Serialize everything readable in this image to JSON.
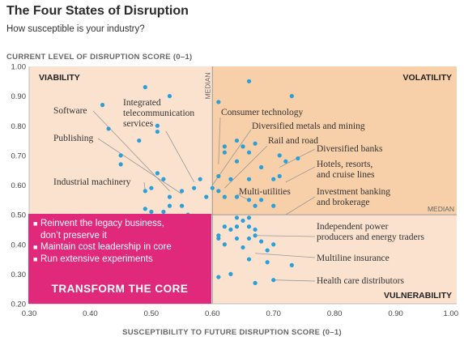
{
  "title": "The Four States of Disruption",
  "subtitle": "How susceptible is your industry?",
  "callout": {
    "bullets": [
      "Reinvent the legacy business,\ndon’t preserve it",
      "Maintain cost leadership in core",
      "Run extensive experiments"
    ],
    "heading": "TRANSFORM THE CORE",
    "color": "#e0297a"
  },
  "chart_data": {
    "type": "scatter",
    "title": "The Four States of Disruption",
    "subtitle": "How susceptible is your industry?",
    "xlabel": "SUSCEPTIBILITY TO FUTURE DISRUPTION SCORE (0–1)",
    "ylabel": "CURRENT LEVEL OF DISRUPTION SCORE (0–1)",
    "xlim": [
      0.3,
      1.0
    ],
    "ylim": [
      0.2,
      1.0
    ],
    "x_ticks": [
      "0.30",
      "0.40",
      "0.50",
      "0.60",
      "0.70",
      "0.80",
      "0.90",
      "1.00"
    ],
    "y_ticks": [
      "0.20",
      "0.30",
      "0.40",
      "0.50",
      "0.60",
      "0.70",
      "0.80",
      "0.90",
      "1.00"
    ],
    "grid": false,
    "median": {
      "x": 0.6,
      "y": 0.5,
      "label": "MEDIAN"
    },
    "point_color": "#2a9fd8",
    "quadrants": [
      {
        "name": "VIABILITY",
        "x_range": [
          0.3,
          0.6
        ],
        "y_range": [
          0.5,
          1.0
        ],
        "color": "#fbe2cf"
      },
      {
        "name": "VOLATILITY",
        "x_range": [
          0.6,
          1.0
        ],
        "y_range": [
          0.5,
          1.0
        ],
        "color": "#f7cfa9"
      },
      {
        "name": "VULNERABILITY",
        "x_range": [
          0.6,
          1.0
        ],
        "y_range": [
          0.2,
          0.5
        ],
        "color": "#fbe2cf"
      }
    ],
    "annotations": [
      {
        "text": "Software",
        "point": [
          0.53,
          0.58
        ]
      },
      {
        "text": "Integrated\ntelecommunication\nservices",
        "point": [
          0.57,
          0.61
        ]
      },
      {
        "text": "Publishing",
        "point": [
          0.55,
          0.57
        ]
      },
      {
        "text": "Industrial machinery",
        "point": [
          0.49,
          0.58
        ]
      },
      {
        "text": "Consumer technology",
        "point": [
          0.61,
          0.67
        ]
      },
      {
        "text": "Diversified metals and mining",
        "point": [
          0.6,
          0.6
        ]
      },
      {
        "text": "Rail and road",
        "point": [
          0.62,
          0.59
        ]
      },
      {
        "text": "Diversified banks",
        "point": [
          0.71,
          0.66
        ]
      },
      {
        "text": "Hotels, resorts,\nand cruise lines",
        "point": [
          0.72,
          0.61
        ]
      },
      {
        "text": "Multi-utilities",
        "point": [
          0.66,
          0.55
        ]
      },
      {
        "text": "Investment banking\nand brokerage",
        "point": [
          0.72,
          0.5
        ]
      },
      {
        "text": "Independent power\nproducers and energy traders",
        "point": [
          0.67,
          0.43
        ]
      },
      {
        "text": "Multiline insurance",
        "point": [
          0.67,
          0.37
        ]
      },
      {
        "text": "Health care distributors",
        "point": [
          0.7,
          0.28
        ]
      }
    ],
    "points": [
      [
        0.42,
        0.87
      ],
      [
        0.43,
        0.79
      ],
      [
        0.49,
        0.93
      ],
      [
        0.53,
        0.9
      ],
      [
        0.51,
        0.8
      ],
      [
        0.51,
        0.78
      ],
      [
        0.45,
        0.7
      ],
      [
        0.45,
        0.67
      ],
      [
        0.48,
        0.75
      ],
      [
        0.51,
        0.64
      ],
      [
        0.52,
        0.62
      ],
      [
        0.53,
        0.56
      ],
      [
        0.5,
        0.59
      ],
      [
        0.49,
        0.58
      ],
      [
        0.49,
        0.52
      ],
      [
        0.5,
        0.51
      ],
      [
        0.52,
        0.51
      ],
      [
        0.53,
        0.53
      ],
      [
        0.55,
        0.53
      ],
      [
        0.55,
        0.58
      ],
      [
        0.57,
        0.59
      ],
      [
        0.58,
        0.62
      ],
      [
        0.56,
        0.5
      ],
      [
        0.59,
        0.56
      ],
      [
        0.59,
        0.49
      ],
      [
        0.59,
        0.47
      ],
      [
        0.66,
        0.95
      ],
      [
        0.61,
        0.88
      ],
      [
        0.73,
        0.9
      ],
      [
        0.62,
        0.73
      ],
      [
        0.62,
        0.71
      ],
      [
        0.64,
        0.75
      ],
      [
        0.65,
        0.73
      ],
      [
        0.66,
        0.71
      ],
      [
        0.67,
        0.74
      ],
      [
        0.64,
        0.68
      ],
      [
        0.68,
        0.66
      ],
      [
        0.71,
        0.7
      ],
      [
        0.72,
        0.68
      ],
      [
        0.74,
        0.69
      ],
      [
        0.61,
        0.63
      ],
      [
        0.63,
        0.62
      ],
      [
        0.66,
        0.62
      ],
      [
        0.7,
        0.62
      ],
      [
        0.71,
        0.63
      ],
      [
        0.6,
        0.59
      ],
      [
        0.61,
        0.58
      ],
      [
        0.62,
        0.56
      ],
      [
        0.64,
        0.56
      ],
      [
        0.66,
        0.55
      ],
      [
        0.67,
        0.53
      ],
      [
        0.68,
        0.55
      ],
      [
        0.7,
        0.53
      ],
      [
        0.64,
        0.49
      ],
      [
        0.65,
        0.48
      ],
      [
        0.66,
        0.49
      ],
      [
        0.62,
        0.46
      ],
      [
        0.63,
        0.45
      ],
      [
        0.64,
        0.46
      ],
      [
        0.66,
        0.46
      ],
      [
        0.67,
        0.45
      ],
      [
        0.61,
        0.43
      ],
      [
        0.61,
        0.42
      ],
      [
        0.62,
        0.4
      ],
      [
        0.64,
        0.42
      ],
      [
        0.66,
        0.42
      ],
      [
        0.67,
        0.43
      ],
      [
        0.68,
        0.41
      ],
      [
        0.65,
        0.39
      ],
      [
        0.69,
        0.38
      ],
      [
        0.7,
        0.4
      ],
      [
        0.66,
        0.35
      ],
      [
        0.69,
        0.34
      ],
      [
        0.61,
        0.29
      ],
      [
        0.63,
        0.3
      ],
      [
        0.67,
        0.27
      ],
      [
        0.7,
        0.28
      ],
      [
        0.73,
        0.33
      ]
    ]
  }
}
